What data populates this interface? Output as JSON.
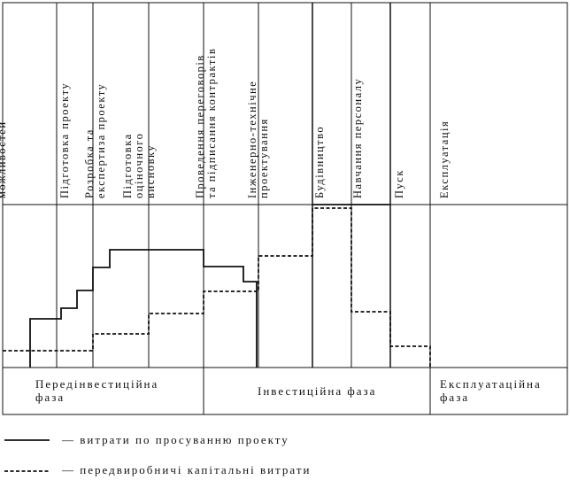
{
  "stages": [
    "Ідентифікація\nдослідження\nможливостей",
    "Підготовка проекту",
    "Розробка та\nекспертиза проекту",
    "Підготовка\nоціночного\nвисновку",
    "Проведення переговорів\nта підписання контрактів",
    "Інженерно-технічне\nпроектування",
    "Будівництво",
    "Навчання персоналу",
    "Пуск",
    "Експлуатація"
  ],
  "phases": {
    "pre_investment": "Передінвестиційна\nфаза",
    "investment": "Інвестиційна фаза",
    "operation": "Експлуатаційна\nфаза"
  },
  "legend": {
    "solid": "— витрати по просуванню проекту",
    "dashed": "— передвиробничі капітальні витрати"
  }
}
